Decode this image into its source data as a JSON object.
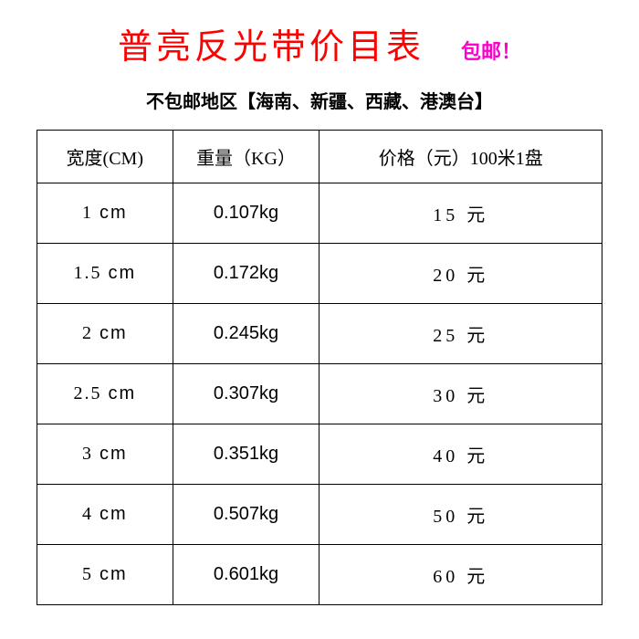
{
  "header": {
    "title": "普亮反光带价目表",
    "shipping_badge": "包邮！",
    "subtitle": "不包邮地区【海南、新疆、西藏、港澳台】"
  },
  "table": {
    "type": "table",
    "columns": [
      {
        "key": "width",
        "label": "宽度(CM)",
        "width_pct": 24,
        "align": "center"
      },
      {
        "key": "weight",
        "label": "重量（KG）",
        "width_pct": 26,
        "align": "center"
      },
      {
        "key": "price",
        "label": "价格（元）100米1盘",
        "width_pct": 50,
        "align": "center"
      }
    ],
    "rows": [
      {
        "width_num": "1",
        "width_unit": "cm",
        "weight": "0.107kg",
        "price_num": "15",
        "price_unit": "元"
      },
      {
        "width_num": "1.5",
        "width_unit": "cm",
        "weight": "0.172kg",
        "price_num": "20",
        "price_unit": "元"
      },
      {
        "width_num": "2",
        "width_unit": "cm",
        "weight": "0.245kg",
        "price_num": "25",
        "price_unit": "元"
      },
      {
        "width_num": "2.5",
        "width_unit": "cm",
        "weight": "0.307kg",
        "price_num": "30",
        "price_unit": "元"
      },
      {
        "width_num": "3",
        "width_unit": "cm",
        "weight": "0.351kg",
        "price_num": "40",
        "price_unit": "元"
      },
      {
        "width_num": "4",
        "width_unit": "cm",
        "weight": "0.507kg",
        "price_num": "50",
        "price_unit": "元"
      },
      {
        "width_num": "5",
        "width_unit": "cm",
        "weight": "0.601kg",
        "price_num": "60",
        "price_unit": "元"
      }
    ],
    "styling": {
      "border_color": "#000000",
      "border_width": 1,
      "header_fontsize": 20,
      "cell_fontsize": 20,
      "text_color": "#000000",
      "background_color": "#ffffff"
    }
  },
  "colors": {
    "title_color": "#ff0000",
    "badge_color": "#ff00cc",
    "subtitle_color": "#000000",
    "border_color": "#000000",
    "background": "#ffffff"
  },
  "typography": {
    "title_fontsize": 38,
    "badge_fontsize": 22,
    "subtitle_fontsize": 20,
    "table_fontsize": 20,
    "font_family": "SimSun"
  }
}
